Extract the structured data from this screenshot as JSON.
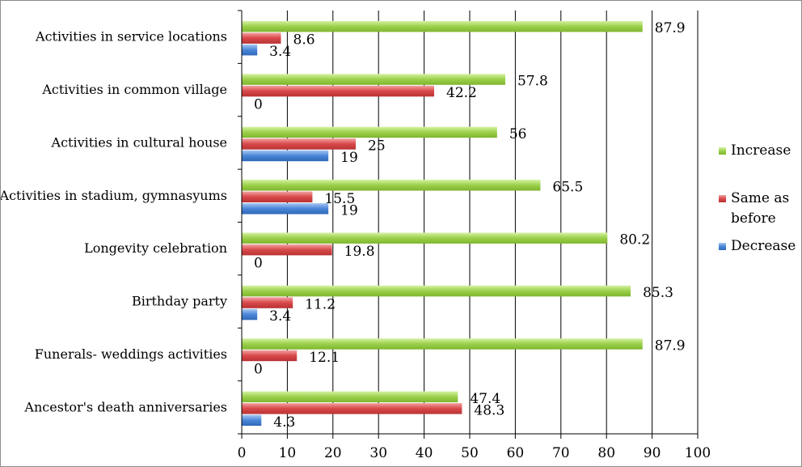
{
  "chart_data": {
    "type": "bar",
    "orientation": "horizontal",
    "categories": [
      "Activities in service locations",
      "Activities in common village",
      "Activities in cultural house",
      "Activities in stadium, gymnasyums",
      "Longevity celebration",
      "Birthday party",
      "Funerals- weddings activities",
      "Ancestor's death anniversaries"
    ],
    "series": [
      {
        "name": "Increase",
        "color": "#9bd04a",
        "values": [
          87.9,
          57.8,
          56,
          65.5,
          80.2,
          85.3,
          87.9,
          47.4
        ]
      },
      {
        "name": "Same as before",
        "color": "#d9484a",
        "values": [
          8.6,
          42.2,
          25,
          15.5,
          19.8,
          11.2,
          12.1,
          48.3
        ]
      },
      {
        "name": "Decrease",
        "color": "#4a86d8",
        "values": [
          3.4,
          0,
          19,
          19,
          0,
          3.4,
          0,
          4.3
        ]
      }
    ],
    "legend": [
      {
        "lines": [
          "Increase"
        ],
        "color": "#9bd04a"
      },
      {
        "lines": [
          "Same as",
          "before"
        ],
        "color": "#d9484a"
      },
      {
        "lines": [
          "Decrease"
        ],
        "color": "#4a86d8"
      }
    ],
    "xlim": [
      0,
      100
    ],
    "xticks": [
      0,
      10,
      20,
      30,
      40,
      50,
      60,
      70,
      80,
      90,
      100
    ],
    "grid": "vertical",
    "legend_position": "right",
    "title": "",
    "xlabel": "",
    "ylabel": ""
  }
}
